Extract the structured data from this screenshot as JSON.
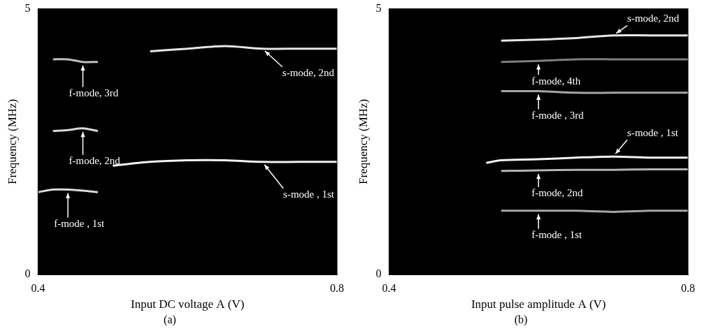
{
  "chart_data": [
    {
      "type": "line",
      "subtitle": "(a)",
      "x_label": "Input DC voltage A (V)",
      "y_label": "Frequency (MHz)",
      "xlim": [
        0.4,
        0.8
      ],
      "xticks": [
        0.4,
        0.8
      ],
      "ylim": [
        0,
        5
      ],
      "yticks": [
        0,
        5
      ],
      "grid": false,
      "series": [
        {
          "name": "f-mode , 1st",
          "color": "#d9d9d9",
          "line_style": "solid",
          "marker": "none",
          "x": [
            0.4,
            0.42,
            0.44,
            0.46,
            0.48
          ],
          "values": [
            1.55,
            1.6,
            1.6,
            1.58,
            1.55
          ]
        },
        {
          "name": "f-mode, 2nd",
          "color": "#d9d9d9",
          "line_style": "solid",
          "marker": "none",
          "x": [
            0.42,
            0.44,
            0.46,
            0.48
          ],
          "values": [
            2.7,
            2.72,
            2.75,
            2.7
          ]
        },
        {
          "name": "f-mode, 3rd",
          "color": "#bfbfbf",
          "line_style": "solid",
          "marker": "none",
          "x": [
            0.42,
            0.44,
            0.46,
            0.48
          ],
          "values": [
            4.05,
            4.05,
            4.0,
            4.0
          ]
        },
        {
          "name": "s-mode , 1st",
          "color": "#f2f2f2",
          "line_style": "solid",
          "marker": "none",
          "x": [
            0.5,
            0.55,
            0.6,
            0.65,
            0.7,
            0.75,
            0.8
          ],
          "values": [
            2.05,
            2.12,
            2.15,
            2.15,
            2.12,
            2.12,
            2.12
          ]
        },
        {
          "name": "s-mode, 2nd",
          "color": "#e6e6e6",
          "line_style": "solid",
          "marker": "none",
          "x": [
            0.55,
            0.6,
            0.65,
            0.7,
            0.75,
            0.8
          ],
          "values": [
            4.2,
            4.25,
            4.3,
            4.25,
            4.25,
            4.25
          ]
        }
      ]
    },
    {
      "type": "line",
      "subtitle": "(b)",
      "x_label": "Input pulse amplitude A (V)",
      "y_label": "Frequency (MHz)",
      "xlim": [
        0.4,
        0.8
      ],
      "xticks": [
        0.4,
        0.8
      ],
      "ylim": [
        0,
        5
      ],
      "yticks": [
        0,
        5
      ],
      "grid": false,
      "series": [
        {
          "name": "s-mode, 2nd",
          "color": "#e6e6e6",
          "line_style": "solid",
          "marker": "none",
          "x": [
            0.55,
            0.6,
            0.65,
            0.7,
            0.75,
            0.8
          ],
          "values": [
            4.4,
            4.42,
            4.45,
            4.5,
            4.5,
            4.5
          ]
        },
        {
          "name": "f-mode, 4th",
          "color": "#7f7f7f",
          "line_style": "solid",
          "marker": "none",
          "x": [
            0.55,
            0.6,
            0.65,
            0.7,
            0.75,
            0.8
          ],
          "values": [
            4.0,
            4.02,
            4.05,
            4.05,
            4.05,
            4.05
          ]
        },
        {
          "name": "f-mode , 3rd",
          "color": "#a6a6a6",
          "line_style": "solid",
          "marker": "none",
          "x": [
            0.55,
            0.6,
            0.65,
            0.7,
            0.75,
            0.8
          ],
          "values": [
            3.45,
            3.45,
            3.42,
            3.42,
            3.42,
            3.42
          ]
        },
        {
          "name": "s-mode , 1st",
          "color": "#f2f2f2",
          "line_style": "solid",
          "marker": "none",
          "x": [
            0.53,
            0.55,
            0.6,
            0.65,
            0.7,
            0.75,
            0.8
          ],
          "values": [
            2.1,
            2.15,
            2.17,
            2.2,
            2.22,
            2.2,
            2.2
          ]
        },
        {
          "name": "f-mode, 2nd",
          "color": "#b3b3b3",
          "line_style": "solid",
          "marker": "none",
          "x": [
            0.55,
            0.6,
            0.65,
            0.7,
            0.75,
            0.8
          ],
          "values": [
            1.95,
            1.96,
            1.97,
            1.97,
            1.98,
            1.98
          ]
        },
        {
          "name": "f-mode , 1st",
          "color": "#a6a6a6",
          "line_style": "solid",
          "marker": "none",
          "x": [
            0.55,
            0.6,
            0.65,
            0.7,
            0.75,
            0.8
          ],
          "values": [
            1.2,
            1.2,
            1.2,
            1.18,
            1.2,
            1.2
          ]
        }
      ]
    }
  ]
}
